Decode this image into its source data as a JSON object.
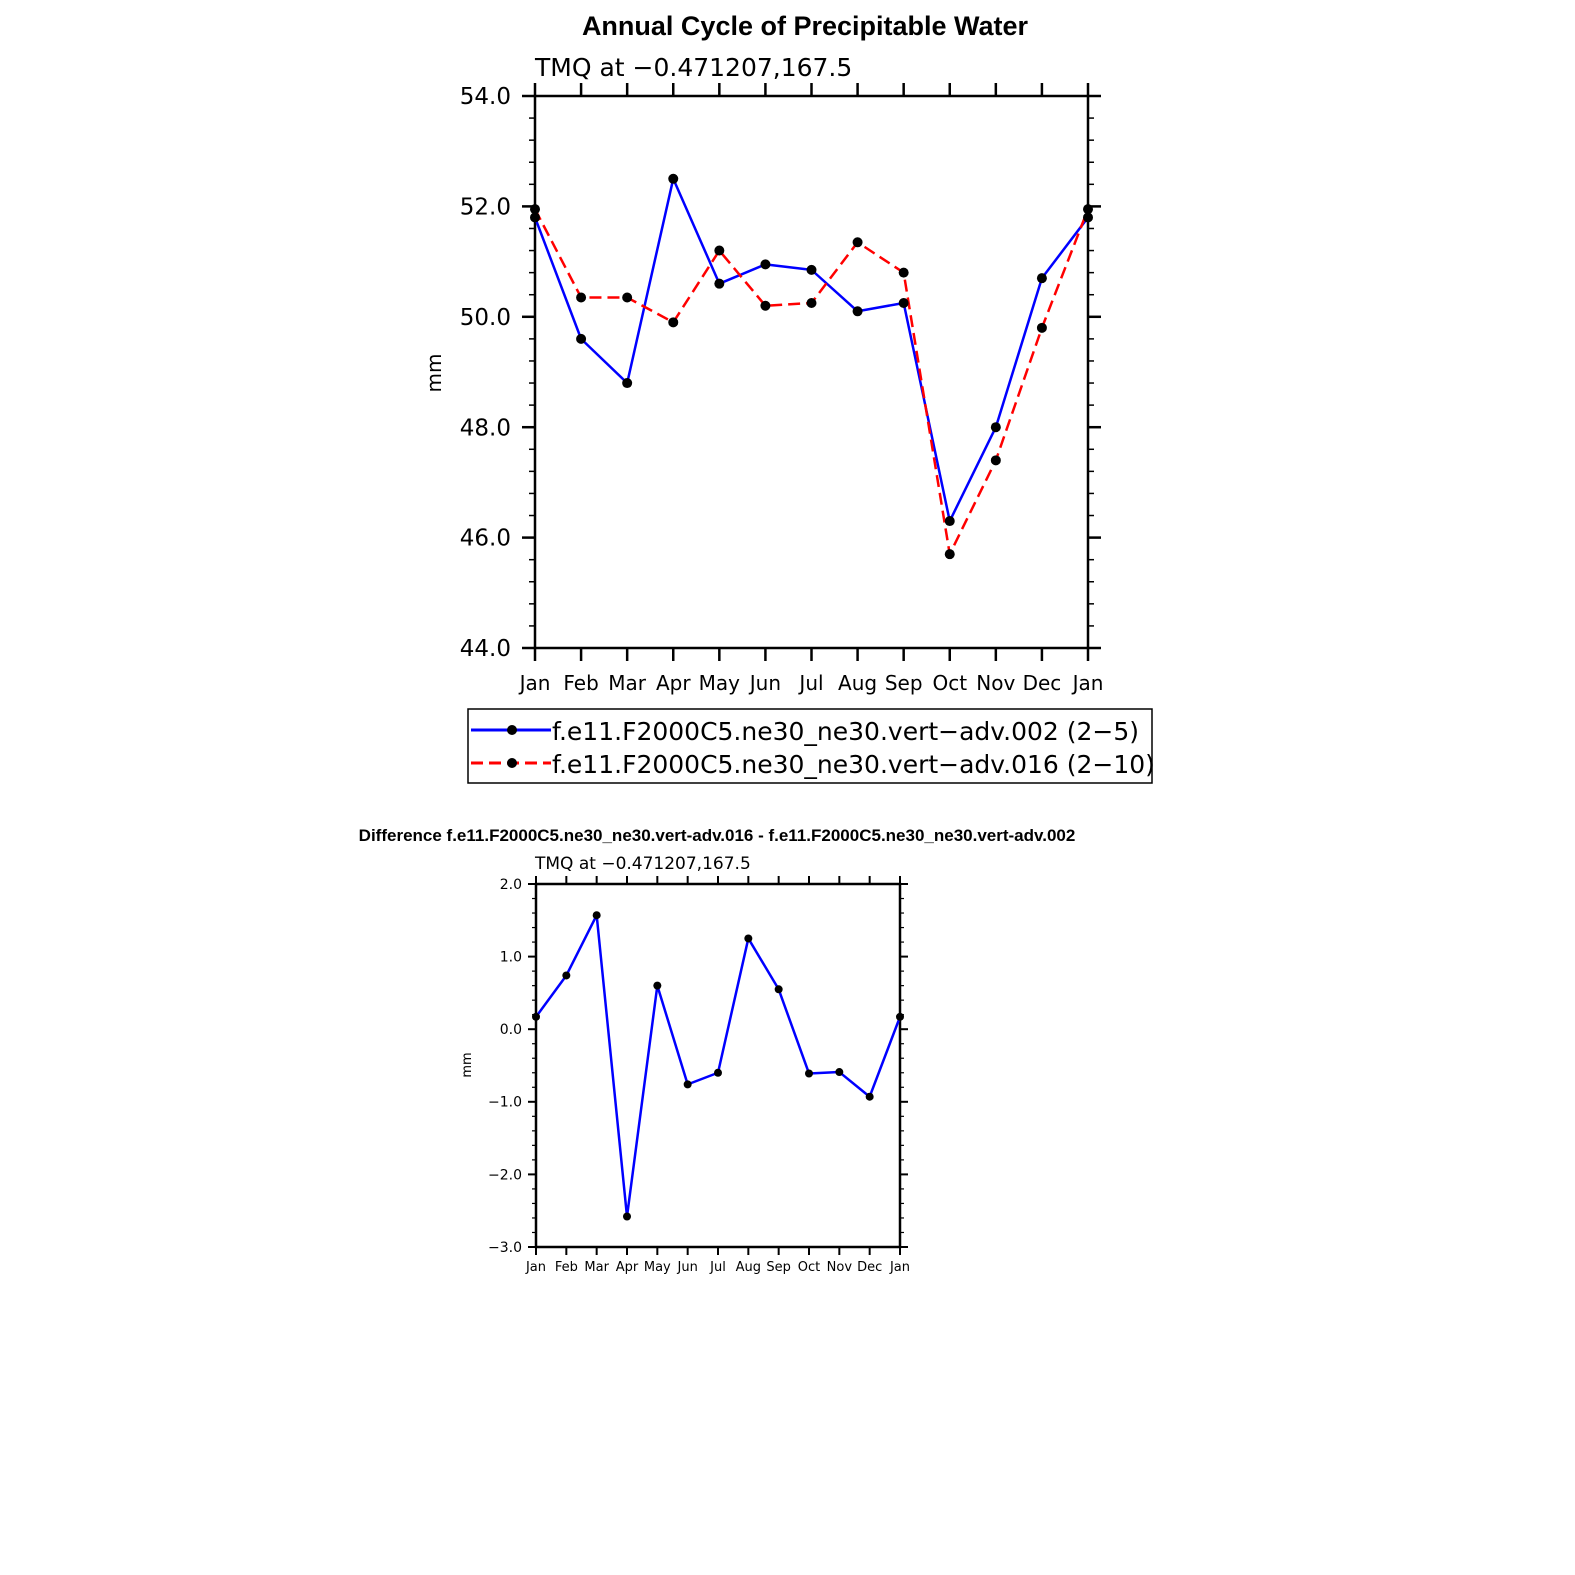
{
  "chart_data": [
    {
      "type": "line",
      "title": "Annual Cycle of Precipitable Water",
      "subtitle": "TMQ at −0.471207,167.5",
      "ylabel": "mm",
      "xlabel": "",
      "categories": [
        "Jan",
        "Feb",
        "Mar",
        "Apr",
        "May",
        "Jun",
        "Jul",
        "Aug",
        "Sep",
        "Oct",
        "Nov",
        "Dec",
        "Jan"
      ],
      "ylim": [
        44.0,
        54.0
      ],
      "yticks": [
        "44.0",
        "46.0",
        "48.0",
        "50.0",
        "52.0",
        "54.0"
      ],
      "ytick_values": [
        44,
        46,
        48,
        50,
        52,
        54
      ],
      "series": [
        {
          "name": "f.e11.F2000C5.ne30_ne30.vert−adv.002 (2−5)",
          "color": "#0000ff",
          "dash": "solid",
          "values": [
            51.8,
            49.6,
            48.8,
            52.5,
            50.6,
            50.95,
            50.85,
            50.1,
            50.25,
            46.3,
            48.0,
            50.7,
            51.8
          ]
        },
        {
          "name": "f.e11.F2000C5.ne30_ne30.vert−adv.016 (2−10)",
          "color": "#ff0000",
          "dash": "dashed",
          "values": [
            51.95,
            50.35,
            50.35,
            49.9,
            51.2,
            50.2,
            50.25,
            51.35,
            50.8,
            45.7,
            47.4,
            49.8,
            51.95
          ]
        }
      ],
      "legend": "below"
    },
    {
      "type": "line",
      "title": "Difference f.e11.F2000C5.ne30_ne30.vert-adv.016 - f.e11.F2000C5.ne30_ne30.vert-adv.002",
      "subtitle": "TMQ at −0.471207,167.5",
      "ylabel": "mm",
      "xlabel": "",
      "categories": [
        "Jan",
        "Feb",
        "Mar",
        "Apr",
        "May",
        "Jun",
        "Jul",
        "Aug",
        "Sep",
        "Oct",
        "Nov",
        "Dec",
        "Jan"
      ],
      "ylim": [
        -3.0,
        2.0
      ],
      "yticks": [
        "−3.0",
        "−2.0",
        "−1.0",
        "0.0",
        "1.0",
        "2.0"
      ],
      "ytick_values": [
        -3,
        -2,
        -1,
        0,
        1,
        2
      ],
      "series": [
        {
          "name": "",
          "color": "#0000ff",
          "dash": "solid",
          "values": [
            0.17,
            0.74,
            1.57,
            -2.58,
            0.6,
            -0.76,
            -0.6,
            1.25,
            0.55,
            -0.61,
            -0.59,
            -0.93,
            0.17
          ]
        }
      ]
    }
  ]
}
